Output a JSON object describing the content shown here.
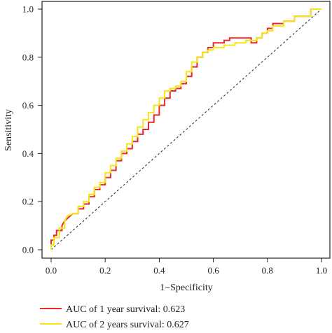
{
  "chart_data": {
    "type": "line",
    "xlabel": "1−Specificity",
    "ylabel": "Sensitivity",
    "xlim": [
      0,
      1
    ],
    "ylim": [
      0,
      1
    ],
    "x_ticks": [
      "0.0",
      "0.2",
      "0.4",
      "0.6",
      "0.8",
      "1.0"
    ],
    "y_ticks": [
      "0.0",
      "0.2",
      "0.4",
      "0.6",
      "0.8",
      "1.0"
    ],
    "grid": false,
    "legend_position": "bottom",
    "reference_line": "diagonal dashed",
    "series": [
      {
        "name": "AUC of 1 year survival: 0.623",
        "color": "#e8262b",
        "x": [
          0,
          0,
          0.01,
          0.01,
          0.02,
          0.02,
          0.04,
          0.04,
          0.05,
          0.06,
          0.07,
          0.08,
          0.1,
          0.1,
          0.12,
          0.12,
          0.14,
          0.14,
          0.16,
          0.16,
          0.18,
          0.18,
          0.2,
          0.2,
          0.22,
          0.22,
          0.24,
          0.24,
          0.26,
          0.26,
          0.28,
          0.28,
          0.3,
          0.3,
          0.32,
          0.32,
          0.34,
          0.34,
          0.36,
          0.36,
          0.38,
          0.38,
          0.4,
          0.4,
          0.42,
          0.42,
          0.44,
          0.44,
          0.46,
          0.46,
          0.48,
          0.48,
          0.5,
          0.5,
          0.52,
          0.52,
          0.54,
          0.54,
          0.56,
          0.56,
          0.58,
          0.58,
          0.6,
          0.6,
          0.64,
          0.64,
          0.66,
          0.66,
          0.74,
          0.74,
          0.76,
          0.76,
          0.78,
          0.78,
          0.8,
          0.8,
          0.82,
          0.82,
          0.86,
          0.86,
          0.9,
          0.9,
          0.96,
          0.96,
          1
        ],
        "y": [
          0,
          0.04,
          0.04,
          0.06,
          0.06,
          0.08,
          0.08,
          0.1,
          0.12,
          0.13,
          0.14,
          0.15,
          0.15,
          0.17,
          0.17,
          0.19,
          0.19,
          0.22,
          0.22,
          0.25,
          0.25,
          0.27,
          0.27,
          0.3,
          0.3,
          0.33,
          0.33,
          0.37,
          0.37,
          0.4,
          0.4,
          0.42,
          0.42,
          0.45,
          0.45,
          0.48,
          0.48,
          0.5,
          0.5,
          0.53,
          0.53,
          0.56,
          0.56,
          0.6,
          0.6,
          0.63,
          0.63,
          0.66,
          0.66,
          0.67,
          0.67,
          0.69,
          0.69,
          0.72,
          0.72,
          0.76,
          0.76,
          0.8,
          0.8,
          0.82,
          0.82,
          0.84,
          0.84,
          0.86,
          0.86,
          0.87,
          0.87,
          0.88,
          0.88,
          0.86,
          0.86,
          0.88,
          0.88,
          0.9,
          0.9,
          0.92,
          0.92,
          0.94,
          0.94,
          0.95,
          0.95,
          0.97,
          0.97,
          1,
          1
        ]
      },
      {
        "name": "AUC of 2 years survival: 0.627",
        "color": "#f5e616",
        "x": [
          0,
          0,
          0.01,
          0.01,
          0.03,
          0.03,
          0.05,
          0.05,
          0.06,
          0.08,
          0.1,
          0.1,
          0.12,
          0.12,
          0.14,
          0.14,
          0.16,
          0.16,
          0.18,
          0.18,
          0.2,
          0.2,
          0.22,
          0.22,
          0.24,
          0.24,
          0.26,
          0.26,
          0.28,
          0.28,
          0.3,
          0.3,
          0.32,
          0.32,
          0.34,
          0.34,
          0.36,
          0.36,
          0.38,
          0.38,
          0.4,
          0.4,
          0.42,
          0.42,
          0.44,
          0.44,
          0.46,
          0.46,
          0.48,
          0.48,
          0.5,
          0.5,
          0.52,
          0.52,
          0.54,
          0.54,
          0.56,
          0.56,
          0.58,
          0.58,
          0.6,
          0.6,
          0.64,
          0.64,
          0.68,
          0.68,
          0.72,
          0.72,
          0.76,
          0.76,
          0.78,
          0.78,
          0.8,
          0.8,
          0.82,
          0.82,
          0.86,
          0.86,
          0.9,
          0.9,
          0.96,
          0.96,
          1
        ],
        "y": [
          0,
          0.02,
          0.02,
          0.05,
          0.05,
          0.09,
          0.09,
          0.12,
          0.14,
          0.15,
          0.15,
          0.18,
          0.18,
          0.2,
          0.2,
          0.23,
          0.23,
          0.26,
          0.26,
          0.28,
          0.28,
          0.32,
          0.32,
          0.35,
          0.35,
          0.38,
          0.38,
          0.41,
          0.41,
          0.44,
          0.44,
          0.47,
          0.47,
          0.51,
          0.51,
          0.54,
          0.54,
          0.57,
          0.57,
          0.6,
          0.6,
          0.63,
          0.63,
          0.66,
          0.66,
          0.67,
          0.67,
          0.68,
          0.68,
          0.7,
          0.7,
          0.74,
          0.74,
          0.78,
          0.78,
          0.8,
          0.8,
          0.82,
          0.82,
          0.83,
          0.83,
          0.84,
          0.84,
          0.85,
          0.85,
          0.86,
          0.86,
          0.87,
          0.87,
          0.88,
          0.88,
          0.9,
          0.9,
          0.91,
          0.91,
          0.93,
          0.93,
          0.95,
          0.95,
          0.97,
          0.97,
          1,
          1
        ]
      }
    ]
  }
}
